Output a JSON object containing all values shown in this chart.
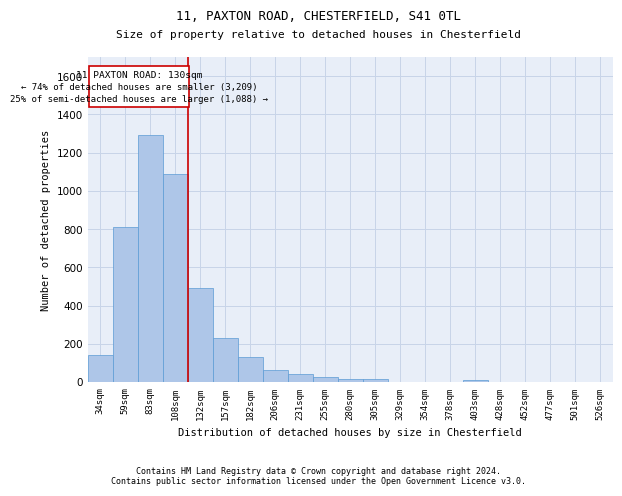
{
  "title1": "11, PAXTON ROAD, CHESTERFIELD, S41 0TL",
  "title2": "Size of property relative to detached houses in Chesterfield",
  "xlabel": "Distribution of detached houses by size in Chesterfield",
  "ylabel": "Number of detached properties",
  "categories": [
    "34sqm",
    "59sqm",
    "83sqm",
    "108sqm",
    "132sqm",
    "157sqm",
    "182sqm",
    "206sqm",
    "231sqm",
    "255sqm",
    "280sqm",
    "305sqm",
    "329sqm",
    "354sqm",
    "378sqm",
    "403sqm",
    "428sqm",
    "452sqm",
    "477sqm",
    "501sqm",
    "526sqm"
  ],
  "values": [
    140,
    810,
    1290,
    1090,
    490,
    230,
    130,
    65,
    40,
    28,
    18,
    15,
    0,
    0,
    0,
    12,
    0,
    0,
    0,
    0,
    0
  ],
  "bar_color": "#aec6e8",
  "bar_edge_color": "#5b9bd5",
  "grid_color": "#c8d4e8",
  "background_color": "#e8eef8",
  "annotation_text_line1": "11 PAXTON ROAD: 130sqm",
  "annotation_text_line2": "← 74% of detached houses are smaller (3,209)",
  "annotation_text_line3": "25% of semi-detached houses are larger (1,088) →",
  "annotation_box_color": "#cc0000",
  "ylim": [
    0,
    1700
  ],
  "yticks": [
    0,
    200,
    400,
    600,
    800,
    1000,
    1200,
    1400,
    1600
  ],
  "footer1": "Contains HM Land Registry data © Crown copyright and database right 2024.",
  "footer2": "Contains public sector information licensed under the Open Government Licence v3.0."
}
